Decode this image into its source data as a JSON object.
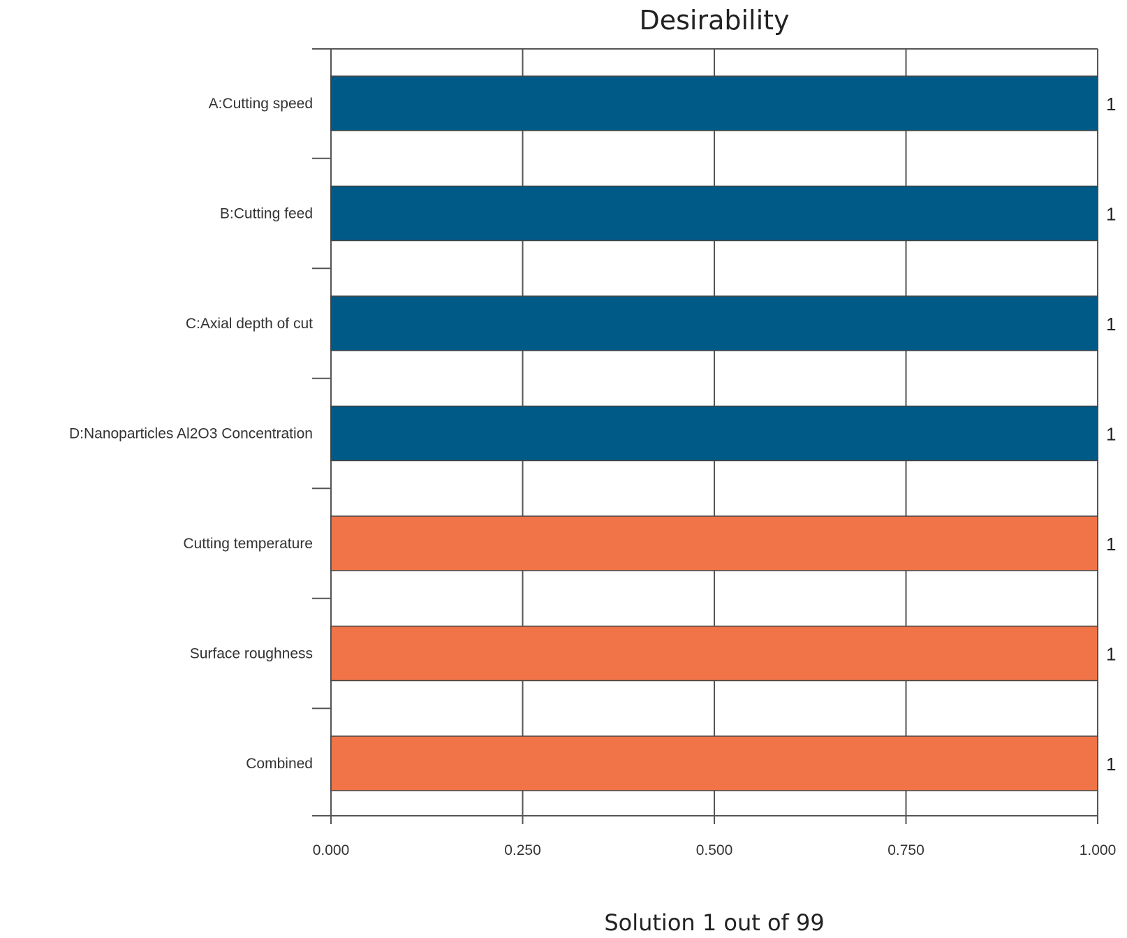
{
  "chart_data": {
    "type": "bar",
    "orientation": "horizontal",
    "title": "Desirability",
    "xlabel": "Solution 1 out of 99",
    "ylabel": "",
    "xlim": [
      0,
      1
    ],
    "x_ticks": [
      "0.000",
      "0.250",
      "0.500",
      "0.750",
      "1.000"
    ],
    "x_tick_values": [
      0,
      0.25,
      0.5,
      0.75,
      1
    ],
    "grid": "vertical",
    "categories": [
      "A:Cutting speed",
      "B:Cutting feed",
      "C:Axial depth of cut",
      "D:Nanoparticles Al2O3 Concentration",
      "Cutting temperature",
      "Surface roughness",
      "Combined"
    ],
    "values": [
      1,
      1,
      1,
      1,
      1,
      1,
      1
    ],
    "value_labels": [
      "1",
      "1",
      "1",
      "1",
      "1",
      "1",
      "1"
    ],
    "bar_colors": [
      "#005a87",
      "#005a87",
      "#005a87",
      "#005a87",
      "#f07448",
      "#f07448",
      "#f07448"
    ]
  }
}
